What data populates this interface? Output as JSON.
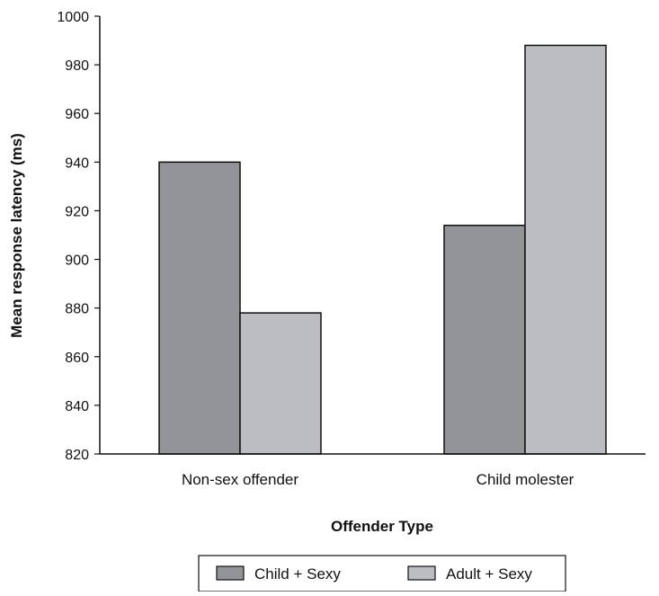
{
  "chart_data": {
    "type": "bar",
    "title": "",
    "xlabel": "Offender Type",
    "ylabel": "Mean response latency (ms)",
    "categories": [
      "Non-sex offender",
      "Child molester"
    ],
    "series": [
      {
        "name": "Child + Sexy",
        "values": [
          940,
          914
        ],
        "color": "#939498"
      },
      {
        "name": "Adult + Sexy",
        "values": [
          878,
          988
        ],
        "color": "#bcbdc2"
      }
    ],
    "ylim": [
      820,
      1000
    ],
    "yticks": [
      820,
      840,
      860,
      880,
      900,
      920,
      940,
      960,
      980,
      1000
    ],
    "grid": false,
    "legend_position": "bottom"
  }
}
